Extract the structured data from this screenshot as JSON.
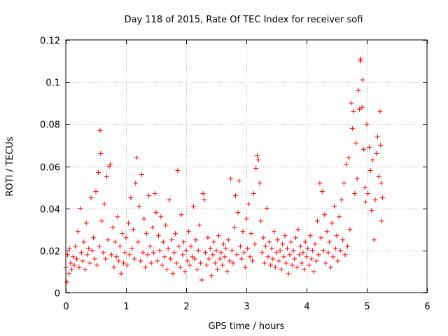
{
  "chart_data": {
    "type": "scatter",
    "title": "Day 118 of 2015, Rate Of TEC Index for receiver sofi",
    "xlabel": "GPS time / hours",
    "ylabel": "ROTI / TECUs",
    "xlim": [
      0,
      6
    ],
    "ylim": [
      0,
      0.12
    ],
    "x_ticks": [
      0,
      1,
      2,
      3,
      4,
      5,
      6
    ],
    "x_tick_labels": [
      "0",
      "1",
      "2",
      "3",
      "4",
      "5",
      "6"
    ],
    "y_ticks": [
      0,
      0.02,
      0.04,
      0.06,
      0.08,
      0.1,
      0.12
    ],
    "y_tick_labels": [
      "0",
      "0.02",
      "0.04",
      "0.06",
      "0.08",
      "0.1",
      "0.12"
    ],
    "grid": true,
    "marker": "+",
    "color": "#ff0000",
    "series": [
      {
        "name": "ROTI",
        "points": [
          [
            0.0,
            0.012
          ],
          [
            0.02,
            0.005
          ],
          [
            0.03,
            0.018
          ],
          [
            0.05,
            0.009
          ],
          [
            0.06,
            0.021
          ],
          [
            0.08,
            0.014
          ],
          [
            0.1,
            0.011
          ],
          [
            0.12,
            0.017
          ],
          [
            0.14,
            0.013
          ],
          [
            0.16,
            0.022
          ],
          [
            0.18,
            0.016
          ],
          [
            0.2,
            0.029
          ],
          [
            0.22,
            0.012
          ],
          [
            0.24,
            0.04
          ],
          [
            0.26,
            0.019
          ],
          [
            0.28,
            0.015
          ],
          [
            0.3,
            0.024
          ],
          [
            0.32,
            0.011
          ],
          [
            0.34,
            0.033
          ],
          [
            0.36,
            0.018
          ],
          [
            0.38,
            0.021
          ],
          [
            0.4,
            0.014
          ],
          [
            0.42,
            0.045
          ],
          [
            0.44,
            0.02
          ],
          [
            0.46,
            0.026
          ],
          [
            0.48,
            0.016
          ],
          [
            0.5,
            0.048
          ],
          [
            0.52,
            0.013
          ],
          [
            0.54,
            0.057
          ],
          [
            0.56,
            0.022
          ],
          [
            0.57,
            0.077
          ],
          [
            0.58,
            0.066
          ],
          [
            0.6,
            0.034
          ],
          [
            0.62,
            0.019
          ],
          [
            0.64,
            0.042
          ],
          [
            0.66,
            0.016
          ],
          [
            0.68,
            0.055
          ],
          [
            0.7,
            0.025
          ],
          [
            0.72,
            0.06
          ],
          [
            0.74,
            0.061
          ],
          [
            0.76,
            0.018
          ],
          [
            0.78,
            0.031
          ],
          [
            0.8,
            0.012
          ],
          [
            0.82,
            0.024
          ],
          [
            0.84,
            0.017
          ],
          [
            0.86,
            0.036
          ],
          [
            0.88,
            0.015
          ],
          [
            0.9,
            0.022
          ],
          [
            0.92,
            0.009
          ],
          [
            0.94,
            0.028
          ],
          [
            0.96,
            0.014
          ],
          [
            0.98,
            0.019
          ],
          [
            1.0,
            0.026
          ],
          [
            1.02,
            0.013
          ],
          [
            1.04,
            0.033
          ],
          [
            1.06,
            0.018
          ],
          [
            1.08,
            0.045
          ],
          [
            1.1,
            0.021
          ],
          [
            1.12,
            0.03
          ],
          [
            1.14,
            0.016
          ],
          [
            1.16,
            0.052
          ],
          [
            1.18,
            0.064
          ],
          [
            1.2,
            0.024
          ],
          [
            1.22,
            0.041
          ],
          [
            1.24,
            0.015
          ],
          [
            1.26,
            0.056
          ],
          [
            1.28,
            0.019
          ],
          [
            1.3,
            0.035
          ],
          [
            1.32,
            0.012
          ],
          [
            1.34,
            0.028
          ],
          [
            1.36,
            0.018
          ],
          [
            1.38,
            0.046
          ],
          [
            1.4,
            0.022
          ],
          [
            1.42,
            0.014
          ],
          [
            1.44,
            0.031
          ],
          [
            1.46,
            0.019
          ],
          [
            1.48,
            0.047
          ],
          [
            1.5,
            0.038
          ],
          [
            1.52,
            0.015
          ],
          [
            1.54,
            0.027
          ],
          [
            1.56,
            0.02
          ],
          [
            1.58,
            0.036
          ],
          [
            1.6,
            0.013
          ],
          [
            1.62,
            0.024
          ],
          [
            1.64,
            0.017
          ],
          [
            1.66,
            0.032
          ],
          [
            1.68,
            0.011
          ],
          [
            1.7,
            0.021
          ],
          [
            1.72,
            0.044
          ],
          [
            1.74,
            0.016
          ],
          [
            1.76,
            0.025
          ],
          [
            1.78,
            0.009
          ],
          [
            1.8,
            0.019
          ],
          [
            1.82,
            0.028
          ],
          [
            1.84,
            0.014
          ],
          [
            1.86,
            0.058
          ],
          [
            1.88,
            0.022
          ],
          [
            1.9,
            0.012
          ],
          [
            1.92,
            0.037
          ],
          [
            1.94,
            0.018
          ],
          [
            1.96,
            0.024
          ],
          [
            1.98,
            0.01
          ],
          [
            2.0,
            0.02
          ],
          [
            2.02,
            0.015
          ],
          [
            2.04,
            0.029
          ],
          [
            2.06,
            0.013
          ],
          [
            2.08,
            0.022
          ],
          [
            2.1,
            0.017
          ],
          [
            2.12,
            0.041
          ],
          [
            2.14,
            0.016
          ],
          [
            2.16,
            0.025
          ],
          [
            2.18,
            0.011
          ],
          [
            2.2,
            0.02
          ],
          [
            2.22,
            0.032
          ],
          [
            2.24,
            0.014
          ],
          [
            2.26,
            0.006
          ],
          [
            2.28,
            0.047
          ],
          [
            2.3,
            0.044
          ],
          [
            2.32,
            0.019
          ],
          [
            2.34,
            0.013
          ],
          [
            2.36,
            0.026
          ],
          [
            2.38,
            0.016
          ],
          [
            2.4,
            0.021
          ],
          [
            2.42,
            0.008
          ],
          [
            2.44,
            0.018
          ],
          [
            2.46,
            0.024
          ],
          [
            2.48,
            0.014
          ],
          [
            2.5,
            0.02
          ],
          [
            2.52,
            0.011
          ],
          [
            2.54,
            0.027
          ],
          [
            2.56,
            0.016
          ],
          [
            2.58,
            0.019
          ],
          [
            2.6,
            0.013
          ],
          [
            2.62,
            0.023
          ],
          [
            2.64,
            0.017
          ],
          [
            2.66,
            0.021
          ],
          [
            2.68,
            0.01
          ],
          [
            2.7,
            0.025
          ],
          [
            2.72,
            0.015
          ],
          [
            2.74,
            0.054
          ],
          [
            2.76,
            0.02
          ],
          [
            2.78,
            0.014
          ],
          [
            2.8,
            0.031
          ],
          [
            2.82,
            0.046
          ],
          [
            2.84,
            0.018
          ],
          [
            2.86,
            0.038
          ],
          [
            2.88,
            0.053
          ],
          [
            2.9,
            0.022
          ],
          [
            2.92,
            0.016
          ],
          [
            2.94,
            0.029
          ],
          [
            2.96,
            0.019
          ],
          [
            2.98,
            0.012
          ],
          [
            3.0,
            0.035
          ],
          [
            3.02,
            0.021
          ],
          [
            3.04,
            0.042
          ],
          [
            3.06,
            0.017
          ],
          [
            3.08,
            0.028
          ],
          [
            3.1,
            0.015
          ],
          [
            3.12,
            0.047
          ],
          [
            3.14,
            0.023
          ],
          [
            3.16,
            0.059
          ],
          [
            3.18,
            0.065
          ],
          [
            3.2,
            0.063
          ],
          [
            3.22,
            0.052
          ],
          [
            3.24,
            0.034
          ],
          [
            3.26,
            0.019
          ],
          [
            3.28,
            0.026
          ],
          [
            3.3,
            0.014
          ],
          [
            3.32,
            0.022
          ],
          [
            3.34,
            0.04
          ],
          [
            3.36,
            0.017
          ],
          [
            3.38,
            0.024
          ],
          [
            3.4,
            0.013
          ],
          [
            3.42,
            0.021
          ],
          [
            3.44,
            0.016
          ],
          [
            3.46,
            0.029
          ],
          [
            3.48,
            0.012
          ],
          [
            3.5,
            0.019
          ],
          [
            3.52,
            0.025
          ],
          [
            3.54,
            0.015
          ],
          [
            3.56,
            0.02
          ],
          [
            3.58,
            0.011
          ],
          [
            3.6,
            0.023
          ],
          [
            3.62,
            0.017
          ],
          [
            3.64,
            0.027
          ],
          [
            3.66,
            0.014
          ],
          [
            3.68,
            0.021
          ],
          [
            3.7,
            0.009
          ],
          [
            3.72,
            0.018
          ],
          [
            3.74,
            0.024
          ],
          [
            3.76,
            0.013
          ],
          [
            3.78,
            0.02
          ],
          [
            3.8,
            0.016
          ],
          [
            3.82,
            0.026
          ],
          [
            3.84,
            0.012
          ],
          [
            3.86,
            0.03
          ],
          [
            3.88,
            0.018
          ],
          [
            3.9,
            0.022
          ],
          [
            3.92,
            0.014
          ],
          [
            3.94,
            0.019
          ],
          [
            3.96,
            0.011
          ],
          [
            3.98,
            0.024
          ],
          [
            4.0,
            0.017
          ],
          [
            4.02,
            0.021
          ],
          [
            4.04,
            0.013
          ],
          [
            4.06,
            0.027
          ],
          [
            4.08,
            0.016
          ],
          [
            4.1,
            0.02
          ],
          [
            4.12,
            0.01
          ],
          [
            4.14,
            0.023
          ],
          [
            4.16,
            0.015
          ],
          [
            4.18,
            0.034
          ],
          [
            4.2,
            0.018
          ],
          [
            4.22,
            0.052
          ],
          [
            4.24,
            0.026
          ],
          [
            4.26,
            0.048
          ],
          [
            4.28,
            0.02
          ],
          [
            4.3,
            0.037
          ],
          [
            4.32,
            0.014
          ],
          [
            4.34,
            0.029
          ],
          [
            4.36,
            0.019
          ],
          [
            4.38,
            0.024
          ],
          [
            4.4,
            0.012
          ],
          [
            4.42,
            0.033
          ],
          [
            4.44,
            0.017
          ],
          [
            4.46,
            0.041
          ],
          [
            4.48,
            0.021
          ],
          [
            4.5,
            0.027
          ],
          [
            4.52,
            0.015
          ],
          [
            4.54,
            0.036
          ],
          [
            4.56,
            0.02
          ],
          [
            4.58,
            0.044
          ],
          [
            4.6,
            0.025
          ],
          [
            4.62,
            0.052
          ],
          [
            4.64,
            0.018
          ],
          [
            4.66,
            0.061
          ],
          [
            4.68,
            0.022
          ],
          [
            4.7,
            0.064
          ],
          [
            4.72,
            0.03
          ],
          [
            4.74,
            0.09
          ],
          [
            4.76,
            0.078
          ],
          [
            4.78,
            0.086
          ],
          [
            4.8,
            0.047
          ],
          [
            4.82,
            0.071
          ],
          [
            4.84,
            0.054
          ],
          [
            4.86,
            0.096
          ],
          [
            4.88,
            0.087
          ],
          [
            4.89,
            0.11
          ],
          [
            4.9,
            0.111
          ],
          [
            4.92,
            0.088
          ],
          [
            4.93,
            0.101
          ],
          [
            4.95,
            0.068
          ],
          [
            4.97,
            0.05
          ],
          [
            4.98,
            0.043
          ],
          [
            5.0,
            0.08
          ],
          [
            5.02,
            0.047
          ],
          [
            5.04,
            0.069
          ],
          [
            5.06,
            0.058
          ],
          [
            5.08,
            0.039
          ],
          [
            5.1,
            0.063
          ],
          [
            5.12,
            0.025
          ],
          [
            5.14,
            0.044
          ],
          [
            5.16,
            0.066
          ],
          [
            5.18,
            0.074
          ],
          [
            5.2,
            0.055
          ],
          [
            5.22,
            0.086
          ],
          [
            5.23,
            0.07
          ],
          [
            5.24,
            0.052
          ],
          [
            5.25,
            0.034
          ],
          [
            5.26,
            0.045
          ]
        ]
      }
    ]
  }
}
